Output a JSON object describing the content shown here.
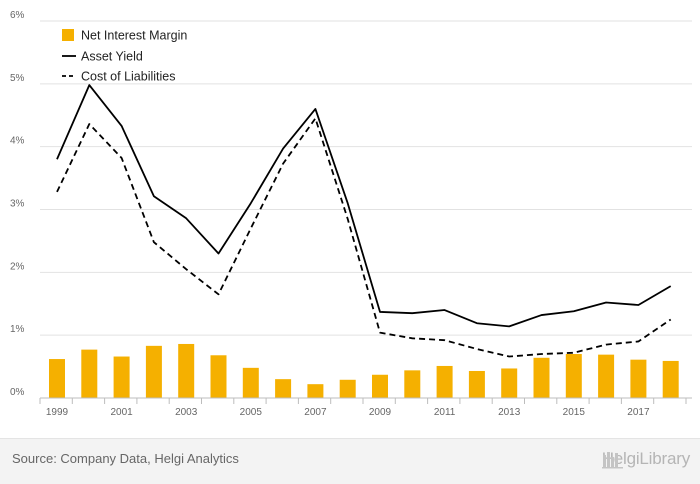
{
  "chart_data": {
    "type": "bar",
    "categories": [
      "1999",
      "2000",
      "2001",
      "2002",
      "2003",
      "2004",
      "2005",
      "2006",
      "2007",
      "2008",
      "2009",
      "2010",
      "2011",
      "2012",
      "2013",
      "2014",
      "2015",
      "2016",
      "2017",
      "2018"
    ],
    "series": [
      {
        "name": "Net Interest Margin",
        "type": "bar",
        "color": "#f5b000",
        "values": [
          0.62,
          0.77,
          0.66,
          0.83,
          0.86,
          0.68,
          0.48,
          0.3,
          0.22,
          0.29,
          0.37,
          0.44,
          0.51,
          0.43,
          0.47,
          0.64,
          0.7,
          0.69,
          0.61,
          0.59
        ]
      },
      {
        "name": "Asset Yield",
        "type": "line",
        "style": "solid",
        "color": "#000000",
        "values": [
          3.8,
          4.98,
          4.33,
          3.21,
          2.86,
          2.3,
          3.1,
          3.97,
          4.6,
          3.1,
          1.37,
          1.35,
          1.4,
          1.19,
          1.14,
          1.32,
          1.38,
          1.52,
          1.48,
          1.78
        ]
      },
      {
        "name": "Cost of Liabilities",
        "type": "line",
        "style": "dashed",
        "color": "#000000",
        "values": [
          3.28,
          4.36,
          3.82,
          2.48,
          2.05,
          1.65,
          2.7,
          3.73,
          4.45,
          2.85,
          1.04,
          0.95,
          0.92,
          0.78,
          0.66,
          0.7,
          0.72,
          0.85,
          0.9,
          1.25
        ]
      }
    ],
    "ylim": [
      0,
      6
    ],
    "y_ticks": [
      "0%",
      "1%",
      "2%",
      "3%",
      "4%",
      "5%",
      "6%"
    ],
    "x_tick_labels": [
      "1999",
      "2001",
      "2003",
      "2005",
      "2007",
      "2009",
      "2011",
      "2013",
      "2015",
      "2017"
    ],
    "grid": "horizontal",
    "legend_position": "top-left"
  },
  "footer": {
    "source": "Source: Company Data, Helgi Analytics",
    "brand": "HelgiLibrary"
  }
}
